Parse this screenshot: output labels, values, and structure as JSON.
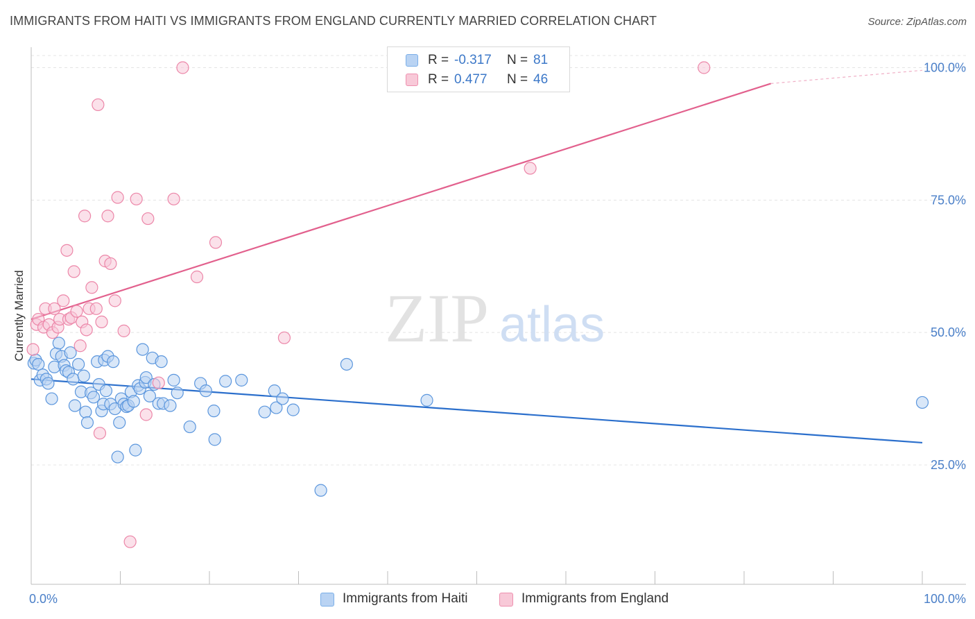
{
  "header": {
    "title": "IMMIGRANTS FROM HAITI VS IMMIGRANTS FROM ENGLAND CURRENTLY MARRIED CORRELATION CHART",
    "source": "Source: ZipAtlas.com"
  },
  "watermark": {
    "zip": "ZIP",
    "atlas": "atlas"
  },
  "legend": {
    "rows": [
      {
        "r_label": "R =",
        "r_value": "-0.317",
        "n_label": "N =",
        "n_value": "81",
        "color": "#7aaee8",
        "fill": "#b9d3f3"
      },
      {
        "r_label": "R =",
        "r_value": "0.477",
        "n_label": "N =",
        "n_value": "46",
        "color": "#ee8fae",
        "fill": "#f8c9d8"
      }
    ]
  },
  "bottom_legend": [
    {
      "label": "Immigrants from Haiti",
      "fill": "#b9d3f3",
      "stroke": "#7aaee8"
    },
    {
      "label": "Immigrants from England",
      "fill": "#f8c9d8",
      "stroke": "#ee8fae"
    }
  ],
  "chart_data": {
    "type": "scatter",
    "ylabel": "Currently Married",
    "xlim": [
      0,
      100
    ],
    "ylim": [
      0,
      103
    ],
    "x_tick_labels": [
      "0.0%",
      "100.0%"
    ],
    "y_tick_labels": [
      {
        "label": "100.0%",
        "value": 100
      },
      {
        "label": "75.0%",
        "value": 75
      },
      {
        "label": "50.0%",
        "value": 50
      },
      {
        "label": "25.0%",
        "value": 25
      }
    ],
    "grid": true,
    "series": [
      {
        "name": "Immigrants from Haiti",
        "color": "#5b96dd",
        "fill": "#b9d3f3",
        "trend": {
          "x": [
            0,
            100
          ],
          "y": [
            41.2,
            29.2
          ],
          "color": "#2b6fcc"
        },
        "points": [
          [
            0.3,
            44.2
          ],
          [
            0.5,
            44.8
          ],
          [
            0.8,
            44
          ],
          [
            1,
            41
          ],
          [
            1.3,
            42
          ],
          [
            1.7,
            41.2
          ],
          [
            1.9,
            40.4
          ],
          [
            2.3,
            37.5
          ],
          [
            2.6,
            43.5
          ],
          [
            2.8,
            46
          ],
          [
            3.1,
            48
          ],
          [
            3.4,
            45.5
          ],
          [
            3.7,
            43.8
          ],
          [
            3.9,
            42.8
          ],
          [
            4.2,
            42.5
          ],
          [
            4.4,
            46.2
          ],
          [
            4.7,
            41.2
          ],
          [
            4.9,
            36.2
          ],
          [
            5.3,
            44
          ],
          [
            5.6,
            38.8
          ],
          [
            5.9,
            41.8
          ],
          [
            6.1,
            35
          ],
          [
            6.3,
            33
          ],
          [
            6.7,
            38.6
          ],
          [
            7,
            37.8
          ],
          [
            7.4,
            44.5
          ],
          [
            7.6,
            40.2
          ],
          [
            7.9,
            35.2
          ],
          [
            8.1,
            36.5
          ],
          [
            8.2,
            44.8
          ],
          [
            8.4,
            39
          ],
          [
            8.6,
            45.5
          ],
          [
            8.9,
            36.5
          ],
          [
            9.2,
            44.5
          ],
          [
            9.4,
            35.6
          ],
          [
            9.7,
            26.5
          ],
          [
            9.9,
            33
          ],
          [
            10.1,
            37.5
          ],
          [
            10.4,
            36.5
          ],
          [
            10.7,
            36
          ],
          [
            10.9,
            36.2
          ],
          [
            11.2,
            38.8
          ],
          [
            11.5,
            37
          ],
          [
            11.7,
            27.8
          ],
          [
            12.0,
            40
          ],
          [
            12.2,
            39.4
          ],
          [
            12.5,
            46.8
          ],
          [
            12.8,
            40.6
          ],
          [
            12.9,
            41.5
          ],
          [
            13.3,
            38
          ],
          [
            13.6,
            45.2
          ],
          [
            13.8,
            40.2
          ],
          [
            14.3,
            36.6
          ],
          [
            14.6,
            44.5
          ],
          [
            14.8,
            36.6
          ],
          [
            15.6,
            36.2
          ],
          [
            16,
            41
          ],
          [
            16.4,
            38.6
          ],
          [
            17.8,
            32.2
          ],
          [
            19,
            40.4
          ],
          [
            19.6,
            39
          ],
          [
            20.5,
            35.2
          ],
          [
            20.6,
            29.8
          ],
          [
            21.8,
            40.8
          ],
          [
            23.6,
            41
          ],
          [
            26.2,
            35
          ],
          [
            27.3,
            39
          ],
          [
            27.5,
            35.8
          ],
          [
            28.2,
            37.5
          ],
          [
            29.4,
            35.4
          ],
          [
            32.5,
            20.2
          ],
          [
            35.4,
            44
          ],
          [
            44.4,
            37.2
          ],
          [
            100,
            36.8
          ]
        ]
      },
      {
        "name": "Immigrants from England",
        "color": "#ec86a8",
        "fill": "#f8c9d8",
        "trend": {
          "x": [
            0,
            83
          ],
          "y": [
            52.5,
            97
          ],
          "color": "#e2608d",
          "dash_to": [
            83,
            100
          ],
          "dash_y_end": 99.5
        },
        "points": [
          [
            0.2,
            46.8
          ],
          [
            0.6,
            51.5
          ],
          [
            0.8,
            52.5
          ],
          [
            1.4,
            51
          ],
          [
            1.6,
            54.5
          ],
          [
            2,
            51.5
          ],
          [
            2.4,
            50
          ],
          [
            2.6,
            54.5
          ],
          [
            3,
            51
          ],
          [
            3.2,
            52.5
          ],
          [
            3.6,
            56
          ],
          [
            4,
            65.5
          ],
          [
            4.2,
            52.5
          ],
          [
            4.5,
            52.8
          ],
          [
            4.8,
            61.5
          ],
          [
            5.1,
            54
          ],
          [
            5.5,
            47.5
          ],
          [
            5.7,
            52
          ],
          [
            6,
            72
          ],
          [
            6.2,
            50.5
          ],
          [
            6.5,
            54.5
          ],
          [
            6.8,
            58.5
          ],
          [
            7.3,
            54.5
          ],
          [
            7.5,
            93
          ],
          [
            7.7,
            31
          ],
          [
            7.9,
            52
          ],
          [
            8.3,
            63.5
          ],
          [
            8.6,
            72
          ],
          [
            8.9,
            63
          ],
          [
            9.4,
            56
          ],
          [
            9.7,
            75.5
          ],
          [
            10.4,
            50.3
          ],
          [
            11.1,
            10.5
          ],
          [
            11.8,
            75.2
          ],
          [
            12.9,
            34.5
          ],
          [
            13.1,
            71.5
          ],
          [
            14.3,
            40.5
          ],
          [
            16,
            75.2
          ],
          [
            17,
            100
          ],
          [
            18.6,
            60.5
          ],
          [
            20.7,
            67
          ],
          [
            28.4,
            49
          ],
          [
            56,
            81
          ],
          [
            75.5,
            100
          ]
        ]
      }
    ]
  }
}
